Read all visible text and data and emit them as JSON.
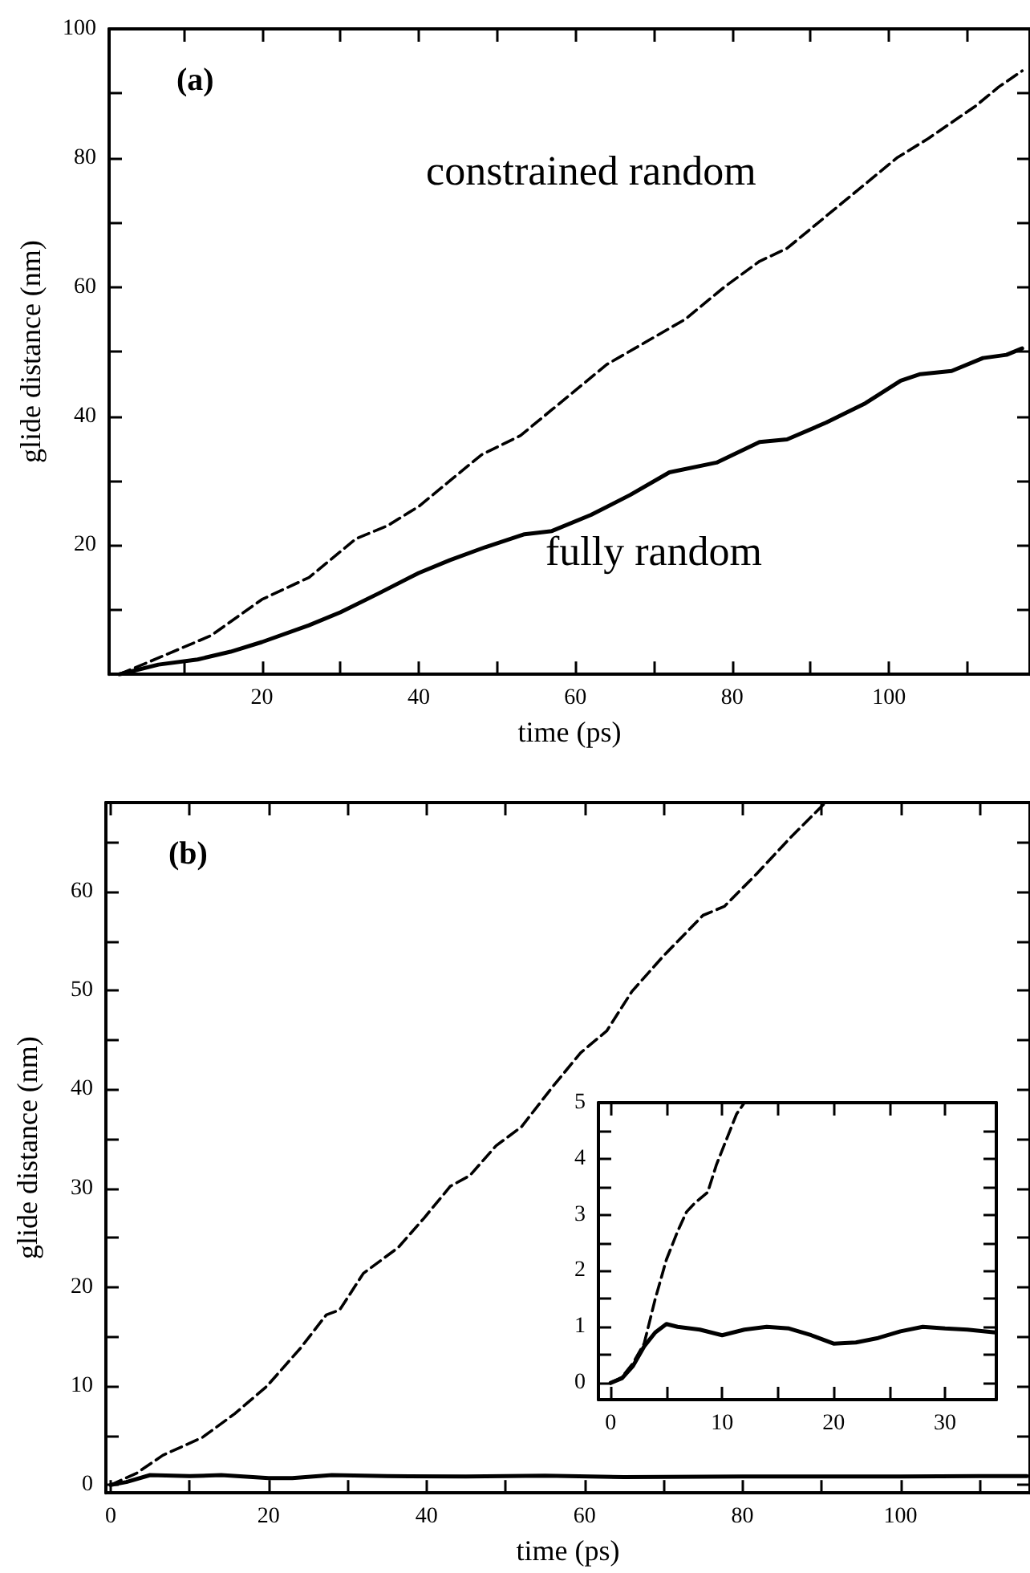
{
  "chart_data": [
    {
      "type": "line",
      "annotations": [
        "(a)"
      ],
      "xlabel": "time (ps)",
      "ylabel": "glide distance (nm)",
      "xlim": [
        0.5,
        118
      ],
      "ylim": [
        0,
        100
      ],
      "xticks": [
        {
          "value": 10,
          "label": null
        },
        20,
        {
          "value": 30,
          "label": null
        },
        40,
        {
          "value": 50,
          "label": null
        },
        60,
        {
          "value": 70,
          "label": null
        },
        80,
        {
          "value": 90,
          "label": null
        },
        100,
        {
          "value": 110,
          "label": null
        }
      ],
      "yticks": [
        {
          "value": 10,
          "label": null
        },
        20,
        {
          "value": 30,
          "label": null
        },
        40,
        {
          "value": 50,
          "label": null
        },
        60,
        {
          "value": 70,
          "label": null
        },
        80,
        {
          "value": 90,
          "label": null
        },
        100
      ],
      "grid": false,
      "legend": false,
      "series": [
        {
          "name": "constrained random",
          "color": "#000000",
          "line_style": "dashed",
          "x": [
            1.8,
            7.7,
            13.5,
            20,
            26,
            32,
            36,
            40,
            44,
            48,
            53,
            57,
            60,
            64,
            69,
            74,
            79,
            83.5,
            87,
            92,
            96,
            101,
            105,
            111,
            114,
            117
          ],
          "values": [
            0,
            3,
            6,
            11.6,
            15,
            21,
            23,
            26,
            30,
            34,
            37,
            41,
            44,
            48,
            51.5,
            55,
            60,
            64,
            66,
            71,
            75,
            80,
            83,
            88,
            91,
            93.5
          ]
        },
        {
          "name": "fully random",
          "color": "#000000",
          "line_style": "solid",
          "x": [
            1.8,
            6.8,
            11.8,
            16,
            20,
            26,
            30,
            35,
            40,
            44,
            48.5,
            53.5,
            57,
            62,
            67,
            72,
            78,
            83.5,
            87,
            92,
            97,
            101.5,
            104,
            108,
            112,
            115,
            117
          ],
          "values": [
            0,
            1.5,
            2.3,
            3.5,
            5,
            7.6,
            9.6,
            12.6,
            15.7,
            17.7,
            19.7,
            21.7,
            22.2,
            24.7,
            27.8,
            31.3,
            32.8,
            36,
            36.4,
            39,
            42,
            45.5,
            46.5,
            47,
            49,
            49.5,
            50.5
          ]
        }
      ]
    },
    {
      "type": "line",
      "annotations": [
        "(b)"
      ],
      "xlabel": "time (ps)",
      "ylabel": "glide distance (nm)",
      "xlim": [
        -0.6,
        116.4
      ],
      "ylim": [
        -0.8,
        69
      ],
      "xticks": [
        0,
        {
          "value": 10,
          "label": null
        },
        20,
        {
          "value": 30,
          "label": null
        },
        40,
        {
          "value": 50,
          "label": null
        },
        60,
        {
          "value": 70,
          "label": null
        },
        80,
        {
          "value": 90,
          "label": null
        },
        100,
        {
          "value": 110,
          "label": null
        }
      ],
      "yticks": [
        0,
        {
          "value": 5,
          "label": null
        },
        10,
        {
          "value": 15,
          "label": null
        },
        20,
        {
          "value": 25,
          "label": null
        },
        30,
        {
          "value": 35,
          "label": null
        },
        40,
        {
          "value": 45,
          "label": null
        },
        50,
        {
          "value": 55,
          "label": null
        },
        60,
        {
          "value": 65,
          "label": null
        }
      ],
      "grid": false,
      "legend": false,
      "series": [
        {
          "color": "#000000",
          "line_style": "dashed",
          "x": [
            0,
            3.3,
            6.6,
            11.6,
            15.7,
            19.8,
            24,
            27.3,
            29,
            32,
            36.4,
            39.7,
            43,
            45.5,
            48.8,
            52,
            56,
            59.5,
            62.8,
            66,
            70,
            75,
            77.7,
            81.8,
            86,
            90.5
          ],
          "values": [
            0,
            1.2,
            3,
            4.8,
            7.2,
            10,
            13.8,
            17.2,
            17.7,
            21.4,
            24,
            27,
            30.2,
            31.3,
            34.3,
            36.2,
            40.3,
            43.7,
            45.9,
            49.9,
            53.5,
            57.6,
            58.5,
            61.8,
            65.4,
            69
          ]
        },
        {
          "color": "#000000",
          "line_style": "solid",
          "x": [
            0,
            2,
            5,
            10,
            14,
            20,
            23,
            28,
            35,
            45,
            55,
            65,
            80,
            100,
            110,
            116
          ],
          "values": [
            0,
            0.3,
            1,
            0.9,
            1,
            0.7,
            0.7,
            1,
            0.9,
            0.85,
            0.95,
            0.8,
            0.85,
            0.85,
            0.9,
            0.9
          ]
        }
      ]
    },
    {
      "type": "line",
      "xlim": [
        -1.1,
        34.6
      ],
      "ylim": [
        -0.3,
        5
      ],
      "xticks": [
        0,
        {
          "value": 5,
          "label": null
        },
        10,
        {
          "value": 15,
          "label": null
        },
        20,
        {
          "value": 25,
          "label": null
        },
        30
      ],
      "yticks": [
        0,
        {
          "value": 0.5,
          "label": null
        },
        1,
        {
          "value": 1.5,
          "label": null
        },
        2,
        {
          "value": 2.5,
          "label": null
        },
        3,
        {
          "value": 3.5,
          "label": null
        },
        4,
        {
          "value": 4.5,
          "label": null
        },
        5
      ],
      "grid": false,
      "legend": false,
      "series": [
        {
          "color": "#000000",
          "line_style": "dashed",
          "x": [
            0,
            1,
            2,
            3,
            4,
            5,
            6,
            6.8,
            7.5,
            8.7,
            9.5,
            10.5,
            11.3,
            12
          ],
          "values": [
            0,
            0.1,
            0.35,
            0.7,
            1.5,
            2.2,
            2.7,
            3.05,
            3.2,
            3.4,
            3.9,
            4.4,
            4.8,
            5
          ]
        },
        {
          "color": "#000000",
          "line_style": "solid",
          "x": [
            0,
            1,
            2,
            3,
            4,
            5,
            6,
            8,
            10,
            12,
            14,
            16,
            18,
            20,
            22,
            24,
            26,
            28,
            30,
            32,
            34.5
          ],
          "values": [
            0,
            0.08,
            0.3,
            0.65,
            0.9,
            1.05,
            1,
            0.95,
            0.85,
            0.95,
            1,
            0.97,
            0.85,
            0.7,
            0.72,
            0.8,
            0.92,
            1,
            0.97,
            0.95,
            0.9
          ]
        }
      ]
    }
  ]
}
